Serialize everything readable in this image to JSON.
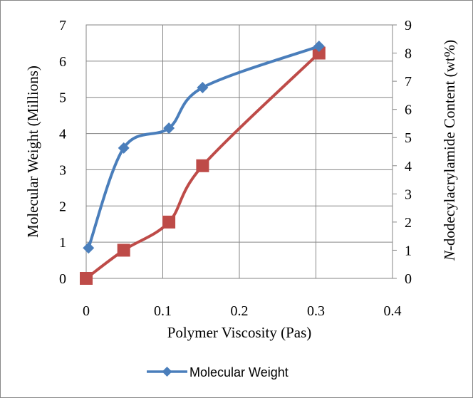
{
  "chart_data": {
    "type": "line",
    "xlabel": "Polymer Viscosity (Pas)",
    "ylabel": "Molecular Weight (Millions)",
    "y2label_italic": "N",
    "y2label_rest": "-dodecylacrylamide Content (wt%)",
    "xlim": [
      0,
      0.4
    ],
    "ylim": [
      0,
      7
    ],
    "y2lim": [
      0,
      9
    ],
    "x_ticks": [
      "0",
      "0.1",
      "0.2",
      "0.3",
      "0.4"
    ],
    "y_ticks": [
      "0",
      "1",
      "2",
      "3",
      "4",
      "5",
      "6",
      "7"
    ],
    "y2_ticks": [
      "0",
      "1",
      "2",
      "3",
      "4",
      "5",
      "6",
      "7",
      "8",
      "9"
    ],
    "grid": true,
    "legend_position": "bottom",
    "series": [
      {
        "name": "Molecular Weight",
        "axis": "left",
        "color": "#4A7EBB",
        "marker": "diamond",
        "x": [
          0.003,
          0.049,
          0.108,
          0.152,
          0.304
        ],
        "y": [
          0.84,
          3.6,
          4.15,
          5.27,
          6.41
        ]
      },
      {
        "name": "",
        "axis": "right",
        "color": "#BE4B48",
        "marker": "square",
        "x": [
          0.0,
          0.049,
          0.108,
          0.152,
          0.304
        ],
        "y": [
          0,
          1,
          2,
          4,
          8
        ]
      }
    ]
  }
}
